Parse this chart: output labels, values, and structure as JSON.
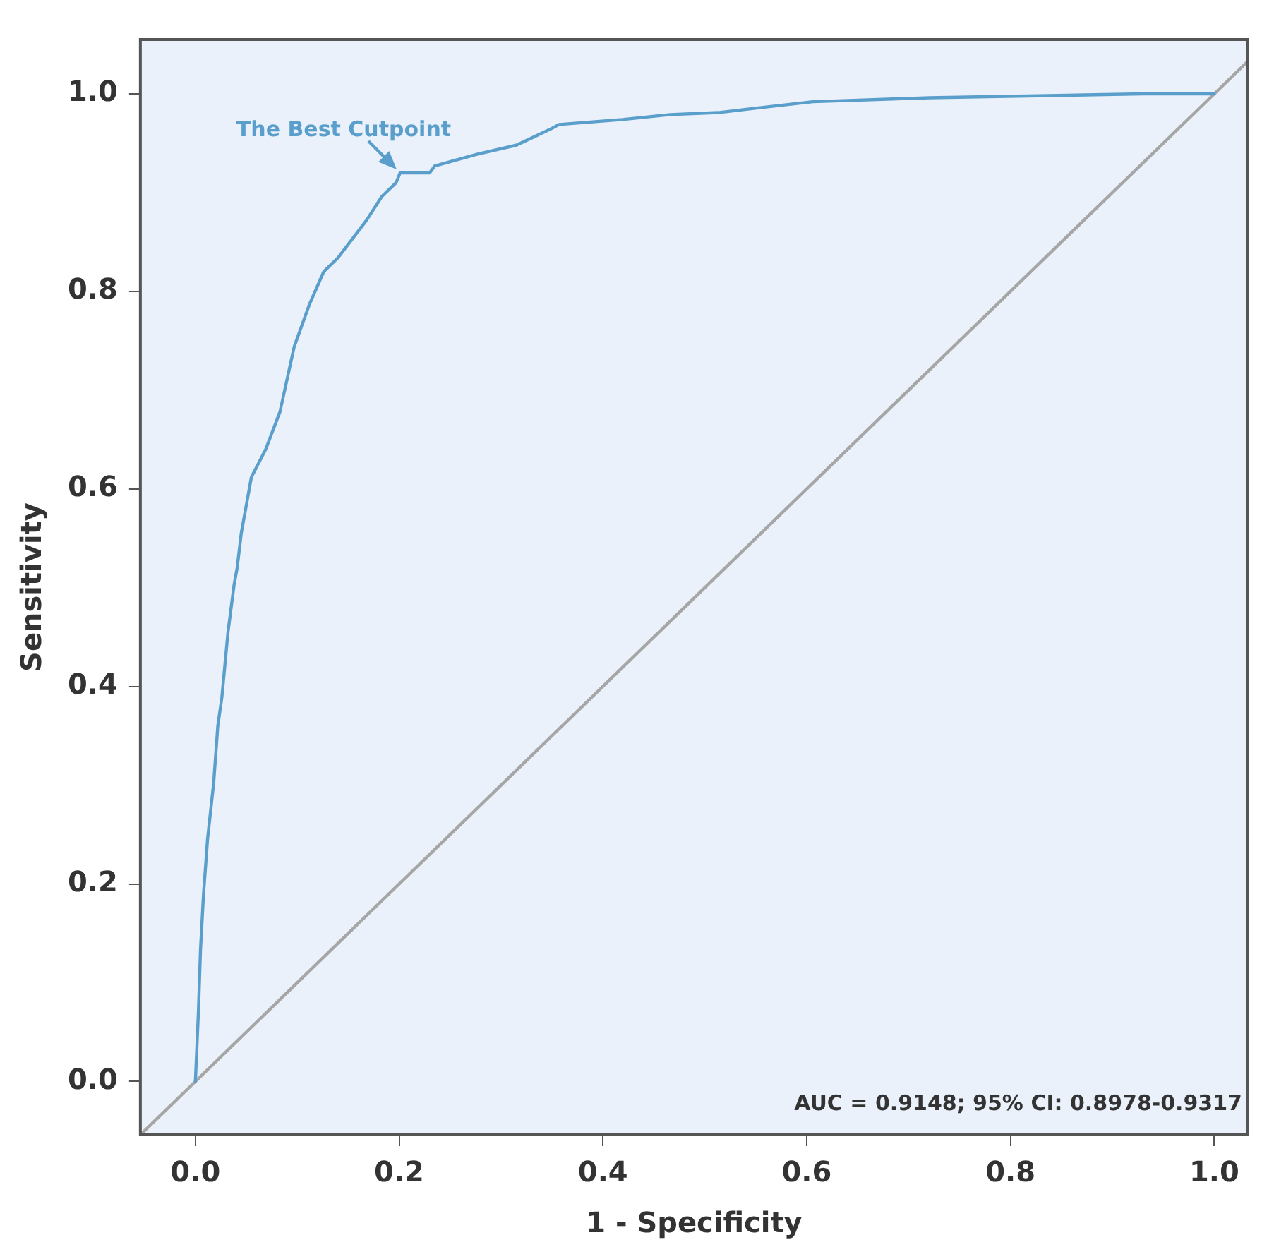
{
  "chart_data": {
    "type": "line",
    "xlabel": "1 - Specificity",
    "ylabel": "Sensitivity",
    "xlim": [
      -0.054,
      1.033
    ],
    "ylim": [
      -0.054,
      1.055
    ],
    "xticks": [
      {
        "value": 0,
        "label": "0.0"
      },
      {
        "value": 0.2,
        "label": "0.2"
      },
      {
        "value": 0.4,
        "label": "0.4"
      },
      {
        "value": 0.6,
        "label": "0.6"
      },
      {
        "value": 0.8,
        "label": "0.8"
      },
      {
        "value": 1,
        "label": "1.0"
      }
    ],
    "yticks": [
      {
        "value": 0,
        "label": "0.0"
      },
      {
        "value": 0.2,
        "label": "0.2"
      },
      {
        "value": 0.4,
        "label": "0.4"
      },
      {
        "value": 0.6,
        "label": "0.6"
      },
      {
        "value": 0.8,
        "label": "0.8"
      },
      {
        "value": 1,
        "label": "1.0"
      }
    ],
    "grid": false,
    "legend": false,
    "marker": "none",
    "line_style": "solid",
    "series": [
      {
        "color": "#5a9fcc",
        "x": [
          0,
          0.003,
          0.005,
          0.008,
          0.012,
          0.018,
          0.022,
          0.026,
          0.032,
          0.038,
          0.041,
          0.045,
          0.055,
          0.069,
          0.083,
          0.097,
          0.112,
          0.126,
          0.14,
          0.154,
          0.168,
          0.183,
          0.197,
          0.201,
          0.23,
          0.235,
          0.277,
          0.315,
          0.348,
          0.357,
          0.419,
          0.466,
          0.513,
          0.554,
          0.606,
          0.72,
          0.93,
          1.0
        ],
        "values": [
          0,
          0.071,
          0.133,
          0.19,
          0.246,
          0.303,
          0.36,
          0.389,
          0.455,
          0.503,
          0.52,
          0.555,
          0.612,
          0.64,
          0.678,
          0.744,
          0.787,
          0.82,
          0.834,
          0.853,
          0.872,
          0.896,
          0.91,
          0.92,
          0.92,
          0.927,
          0.939,
          0.948,
          0.964,
          0.969,
          0.974,
          0.979,
          0.981,
          0.986,
          0.992,
          0.996,
          1.0,
          1.0
        ]
      },
      {
        "color": "#a6a6a6",
        "x": [
          -0.054,
          1.033
        ],
        "values": [
          -0.054,
          1.033
        ]
      }
    ],
    "annotations": [
      {
        "text": "The Best Cutpoint",
        "x": 0.201,
        "y": 0.92
      },
      "AUC = 0.9148; 95% CI: 0.8978-0.9317"
    ]
  }
}
